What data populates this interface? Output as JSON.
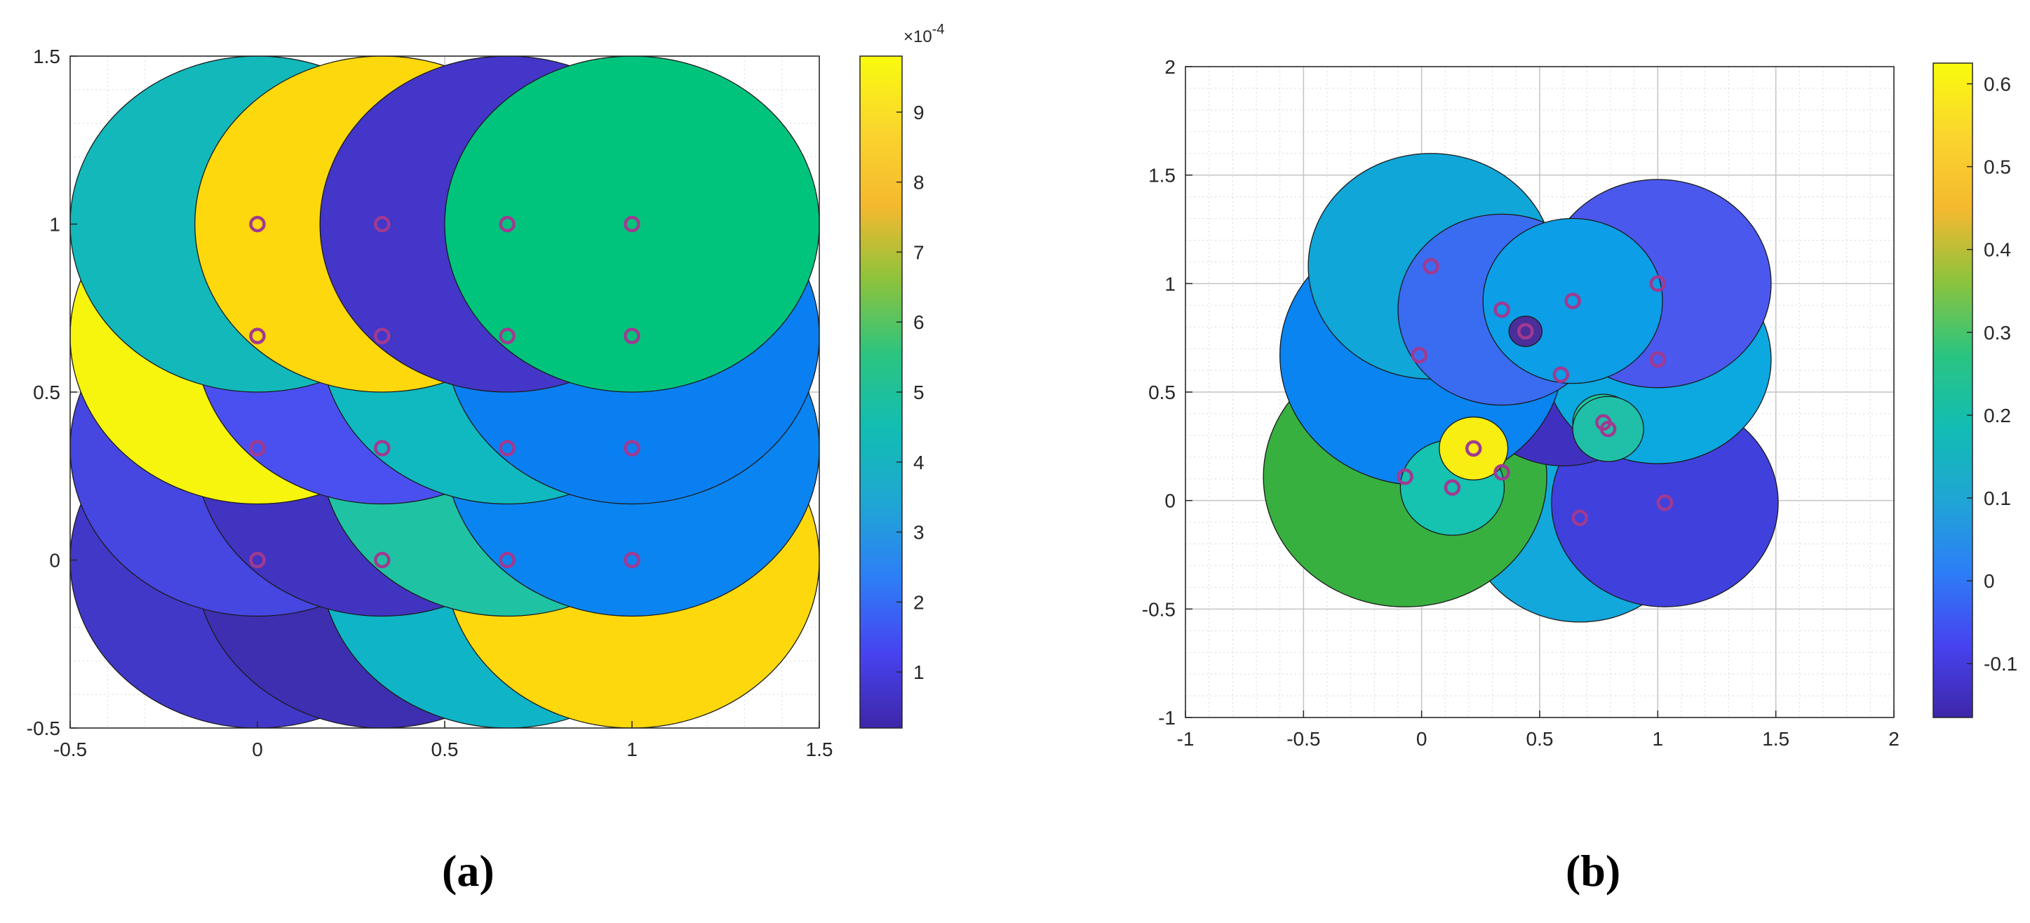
{
  "chart_data": [
    {
      "type": "scatter",
      "panel_label": "(a)",
      "xlim": [
        -0.5,
        1.5
      ],
      "ylim": [
        -0.5,
        1.5
      ],
      "xticks": [
        "-0.5",
        "0",
        "0.5",
        "1",
        "1.5"
      ],
      "yticks": [
        "-0.5",
        "0",
        "0.5",
        "1",
        "1.5"
      ],
      "grid": true,
      "colorbar": {
        "range": [
          2e-05,
          0.00098
        ],
        "ticks": [
          "1",
          "2",
          "3",
          "4",
          "5",
          "6",
          "7",
          "8",
          "9"
        ],
        "tick_values": [
          0.0001,
          0.0002,
          0.0003,
          0.0004,
          0.0005,
          0.0006,
          0.0007,
          0.0008,
          0.0009
        ],
        "exponent_label": "×10",
        "exponent_power": "-4"
      },
      "circles": [
        {
          "cx": 0,
          "cy": 0,
          "r": 0.5,
          "color": "#4238c8"
        },
        {
          "cx": 0.333,
          "cy": 0,
          "r": 0.5,
          "color": "#3d2fb0"
        },
        {
          "cx": 0.667,
          "cy": 0,
          "r": 0.5,
          "color": "#0fb4c6"
        },
        {
          "cx": 1,
          "cy": 0,
          "r": 0.5,
          "color": "#fdd80c"
        },
        {
          "cx": 0,
          "cy": 0.333,
          "r": 0.5,
          "color": "#4646e0"
        },
        {
          "cx": 0.333,
          "cy": 0.333,
          "r": 0.5,
          "color": "#4034c0"
        },
        {
          "cx": 0.667,
          "cy": 0.333,
          "r": 0.5,
          "color": "#20c2a4"
        },
        {
          "cx": 1,
          "cy": 0.333,
          "r": 0.5,
          "color": "#0a84f0"
        },
        {
          "cx": 0,
          "cy": 0.667,
          "r": 0.5,
          "color": "#f7f40e"
        },
        {
          "cx": 0.333,
          "cy": 0.667,
          "r": 0.5,
          "color": "#4a50f0"
        },
        {
          "cx": 0.667,
          "cy": 0.667,
          "r": 0.5,
          "color": "#10b9bf"
        },
        {
          "cx": 1,
          "cy": 0.667,
          "r": 0.5,
          "color": "#0a7ff2"
        },
        {
          "cx": 0,
          "cy": 1,
          "r": 0.5,
          "color": "#12b8ba"
        },
        {
          "cx": 0.333,
          "cy": 1,
          "r": 0.5,
          "color": "#fdd80c"
        },
        {
          "cx": 0.667,
          "cy": 1,
          "r": 0.5,
          "color": "#4336c8"
        },
        {
          "cx": 1,
          "cy": 1,
          "r": 0.5,
          "color": "#00c47c"
        }
      ],
      "points": [
        {
          "x": 0,
          "y": 0
        },
        {
          "x": 0.333,
          "y": 0
        },
        {
          "x": 0.667,
          "y": 0
        },
        {
          "x": 1,
          "y": 0
        },
        {
          "x": 0,
          "y": 0.333
        },
        {
          "x": 0.333,
          "y": 0.333
        },
        {
          "x": 0.667,
          "y": 0.333
        },
        {
          "x": 1,
          "y": 0.333
        },
        {
          "x": 0,
          "y": 0.667
        },
        {
          "x": 0.333,
          "y": 0.667
        },
        {
          "x": 0.667,
          "y": 0.667
        },
        {
          "x": 1,
          "y": 0.667
        },
        {
          "x": 0,
          "y": 1
        },
        {
          "x": 0.333,
          "y": 1
        },
        {
          "x": 0.667,
          "y": 1
        },
        {
          "x": 1,
          "y": 1
        }
      ],
      "marker_color": "#a03a90"
    },
    {
      "type": "scatter",
      "panel_label": "(b)",
      "xlim": [
        -1,
        2
      ],
      "ylim": [
        -1,
        2
      ],
      "xticks": [
        "-1",
        "-0.5",
        "0",
        "0.5",
        "1",
        "1.5",
        "2"
      ],
      "yticks": [
        "-1",
        "-0.5",
        "0",
        "0.5",
        "1",
        "1.5",
        "2"
      ],
      "grid": true,
      "colorbar": {
        "range": [
          -0.165,
          0.625
        ],
        "ticks": [
          "-0.1",
          "0",
          "0.1",
          "0.2",
          "0.3",
          "0.4",
          "0.5",
          "0.6"
        ],
        "tick_values": [
          -0.1,
          0,
          0.1,
          0.2,
          0.3,
          0.4,
          0.5,
          0.6
        ]
      },
      "circles": [
        {
          "cx": 0.67,
          "cy": -0.08,
          "r": 0.48,
          "color": "#12a8dc"
        },
        {
          "cx": -0.07,
          "cy": 0.11,
          "r": 0.6,
          "color": "#38b040"
        },
        {
          "cx": 1.03,
          "cy": -0.01,
          "r": 0.48,
          "color": "#4040dc"
        },
        {
          "cx": 0.6,
          "cy": 0.58,
          "r": 0.42,
          "color": "#4030c0"
        },
        {
          "cx": 1.0,
          "cy": 0.65,
          "r": 0.48,
          "color": "#0ca8e0"
        },
        {
          "cx": 1.0,
          "cy": 1.0,
          "r": 0.48,
          "color": "#4a58ee"
        },
        {
          "cx": 0.0,
          "cy": 0.67,
          "r": 0.6,
          "color": "#0a84f0"
        },
        {
          "cx": 0.04,
          "cy": 1.08,
          "r": 0.52,
          "color": "#10a6d8"
        },
        {
          "cx": 0.34,
          "cy": 0.88,
          "r": 0.44,
          "color": "#3a6cf2"
        },
        {
          "cx": 0.64,
          "cy": 0.92,
          "r": 0.38,
          "color": "#0c9ee6"
        },
        {
          "cx": 0.44,
          "cy": 0.78,
          "r": 0.07,
          "color": "#4a2e9a"
        },
        {
          "cx": 0.13,
          "cy": 0.06,
          "r": 0.22,
          "color": "#16c2b0"
        },
        {
          "cx": 0.77,
          "cy": 0.36,
          "r": 0.13,
          "color": "#1ac8a0"
        },
        {
          "cx": 0.79,
          "cy": 0.33,
          "r": 0.15,
          "color": "#20c0a8"
        },
        {
          "cx": 0.22,
          "cy": 0.24,
          "r": 0.145,
          "color": "#f8ee12"
        }
      ],
      "points": [
        {
          "x": 0.04,
          "y": 1.08
        },
        {
          "x": 0.34,
          "y": 0.88
        },
        {
          "x": 0.64,
          "y": 0.92
        },
        {
          "x": 1.0,
          "y": 1.0
        },
        {
          "x": -0.01,
          "y": 0.67
        },
        {
          "x": 0.44,
          "y": 0.78
        },
        {
          "x": 0.59,
          "y": 0.58
        },
        {
          "x": 1.0,
          "y": 0.65
        },
        {
          "x": 0.77,
          "y": 0.36
        },
        {
          "x": 0.79,
          "y": 0.33
        },
        {
          "x": 0.22,
          "y": 0.24
        },
        {
          "x": -0.07,
          "y": 0.11
        },
        {
          "x": 0.13,
          "y": 0.06
        },
        {
          "x": 0.34,
          "y": 0.13
        },
        {
          "x": 0.67,
          "y": -0.08
        },
        {
          "x": 1.03,
          "y": -0.01
        }
      ],
      "marker_color": "#a03a90"
    }
  ],
  "parula_stops": [
    "#3e26a8",
    "#4743f0",
    "#2d7ef7",
    "#1fa6d4",
    "#12bdb3",
    "#2bc480",
    "#8dc33c",
    "#f5b92f",
    "#fad52e",
    "#f9fb0e"
  ]
}
